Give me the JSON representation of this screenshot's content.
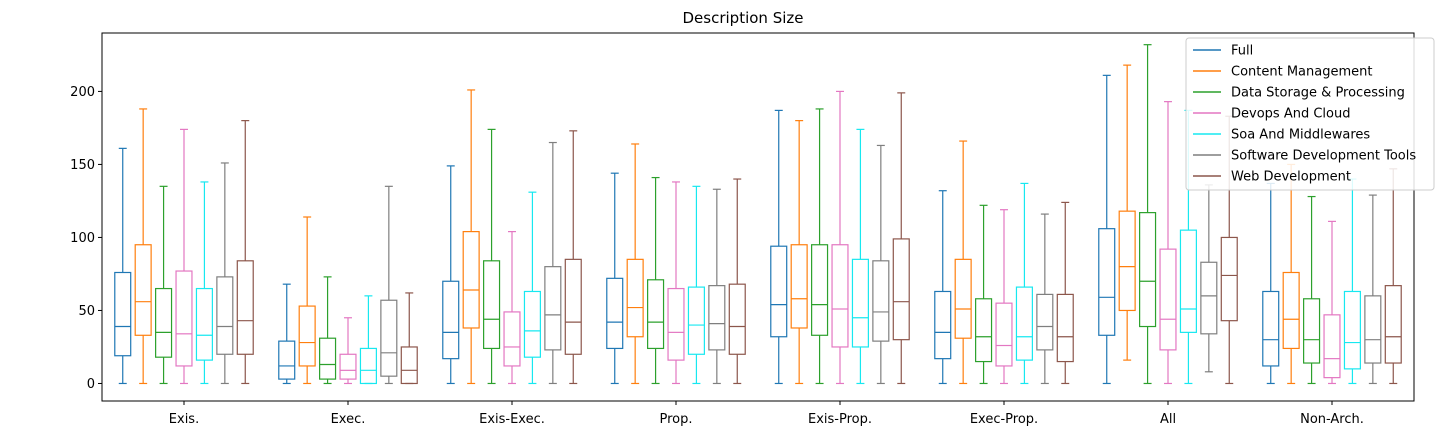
{
  "chart_data": {
    "type": "box",
    "title": "Description Size",
    "xlabel": "",
    "ylabel": "",
    "ylim": [
      -12,
      240
    ],
    "yticks": [
      0,
      50,
      100,
      150,
      200
    ],
    "legend_position": "top-right",
    "grid": false,
    "categories": [
      "Exis.",
      "Exec.",
      "Exis-Exec.",
      "Prop.",
      "Exis-Prop.",
      "Exec-Prop.",
      "All",
      "Non-Arch."
    ],
    "series": [
      {
        "name": "Full",
        "color": "#1f77b4",
        "boxes": [
          {
            "whislo": 0,
            "q1": 19,
            "med": 39,
            "q3": 76,
            "whishi": 161
          },
          {
            "whislo": 0,
            "q1": 3,
            "med": 12,
            "q3": 29,
            "whishi": 68
          },
          {
            "whislo": 0,
            "q1": 17,
            "med": 35,
            "q3": 70,
            "whishi": 149
          },
          {
            "whislo": 0,
            "q1": 24,
            "med": 42,
            "q3": 72,
            "whishi": 144
          },
          {
            "whislo": 0,
            "q1": 32,
            "med": 54,
            "q3": 94,
            "whishi": 187
          },
          {
            "whislo": 0,
            "q1": 17,
            "med": 35,
            "q3": 63,
            "whishi": 132
          },
          {
            "whislo": 0,
            "q1": 33,
            "med": 59,
            "q3": 106,
            "whishi": 211
          },
          {
            "whislo": 0,
            "q1": 12,
            "med": 30,
            "q3": 63,
            "whishi": 137
          }
        ]
      },
      {
        "name": "Content Management",
        "color": "#ff7f0e",
        "boxes": [
          {
            "whislo": 0,
            "q1": 33,
            "med": 56,
            "q3": 95,
            "whishi": 188
          },
          {
            "whislo": 0,
            "q1": 12,
            "med": 28,
            "q3": 53,
            "whishi": 114
          },
          {
            "whislo": 0,
            "q1": 38,
            "med": 64,
            "q3": 104,
            "whishi": 201
          },
          {
            "whislo": 0,
            "q1": 32,
            "med": 52,
            "q3": 85,
            "whishi": 164
          },
          {
            "whislo": 0,
            "q1": 38,
            "med": 58,
            "q3": 95,
            "whishi": 180
          },
          {
            "whislo": 0,
            "q1": 31,
            "med": 51,
            "q3": 85,
            "whishi": 166
          },
          {
            "whislo": 16,
            "q1": 50,
            "med": 80,
            "q3": 118,
            "whishi": 218
          },
          {
            "whislo": 0,
            "q1": 24,
            "med": 44,
            "q3": 76,
            "whishi": 150
          }
        ]
      },
      {
        "name": "Data Storage & Processing",
        "color": "#2ca02c",
        "boxes": [
          {
            "whislo": 0,
            "q1": 18,
            "med": 35,
            "q3": 65,
            "whishi": 135
          },
          {
            "whislo": 0,
            "q1": 3,
            "med": 13,
            "q3": 31,
            "whishi": 73
          },
          {
            "whislo": 0,
            "q1": 24,
            "med": 44,
            "q3": 84,
            "whishi": 174
          },
          {
            "whislo": 0,
            "q1": 24,
            "med": 42,
            "q3": 71,
            "whishi": 141
          },
          {
            "whislo": 0,
            "q1": 33,
            "med": 54,
            "q3": 95,
            "whishi": 188
          },
          {
            "whislo": 0,
            "q1": 15,
            "med": 32,
            "q3": 58,
            "whishi": 122
          },
          {
            "whislo": 0,
            "q1": 39,
            "med": 70,
            "q3": 117,
            "whishi": 232
          },
          {
            "whislo": 0,
            "q1": 14,
            "med": 30,
            "q3": 58,
            "whishi": 128
          }
        ]
      },
      {
        "name": "Devops And Cloud",
        "color": "#e377c2",
        "boxes": [
          {
            "whislo": 0,
            "q1": 12,
            "med": 34,
            "q3": 77,
            "whishi": 174
          },
          {
            "whislo": 0,
            "q1": 3,
            "med": 9,
            "q3": 20,
            "whishi": 45
          },
          {
            "whislo": 0,
            "q1": 12,
            "med": 25,
            "q3": 49,
            "whishi": 104
          },
          {
            "whislo": 0,
            "q1": 16,
            "med": 35,
            "q3": 65,
            "whishi": 138
          },
          {
            "whislo": 0,
            "q1": 25,
            "med": 51,
            "q3": 95,
            "whishi": 200
          },
          {
            "whislo": 0,
            "q1": 12,
            "med": 26,
            "q3": 55,
            "whishi": 119
          },
          {
            "whislo": 0,
            "q1": 23,
            "med": 44,
            "q3": 92,
            "whishi": 193
          },
          {
            "whislo": 0,
            "q1": 4,
            "med": 17,
            "q3": 47,
            "whishi": 111
          }
        ]
      },
      {
        "name": "Soa And Middlewares",
        "color": "#17e8f0",
        "boxes": [
          {
            "whislo": 0,
            "q1": 16,
            "med": 33,
            "q3": 65,
            "whishi": 138
          },
          {
            "whislo": 0,
            "q1": 0,
            "med": 9,
            "q3": 24,
            "whishi": 60
          },
          {
            "whislo": 0,
            "q1": 18,
            "med": 36,
            "q3": 63,
            "whishi": 131
          },
          {
            "whislo": 0,
            "q1": 20,
            "med": 40,
            "q3": 66,
            "whishi": 135
          },
          {
            "whislo": 0,
            "q1": 25,
            "med": 45,
            "q3": 85,
            "whishi": 174
          },
          {
            "whislo": 0,
            "q1": 16,
            "med": 32,
            "q3": 66,
            "whishi": 137
          },
          {
            "whislo": 0,
            "q1": 35,
            "med": 51,
            "q3": 105,
            "whishi": 187
          },
          {
            "whislo": 0,
            "q1": 10,
            "med": 28,
            "q3": 63,
            "whishi": 140
          }
        ]
      },
      {
        "name": "Software Development Tools",
        "color": "#7f7f7f",
        "boxes": [
          {
            "whislo": 0,
            "q1": 20,
            "med": 39,
            "q3": 73,
            "whishi": 151
          },
          {
            "whislo": 0,
            "q1": 5,
            "med": 21,
            "q3": 57,
            "whishi": 135
          },
          {
            "whislo": 0,
            "q1": 23,
            "med": 47,
            "q3": 80,
            "whishi": 165
          },
          {
            "whislo": 0,
            "q1": 23,
            "med": 41,
            "q3": 67,
            "whishi": 133
          },
          {
            "whislo": 0,
            "q1": 29,
            "med": 49,
            "q3": 84,
            "whishi": 163
          },
          {
            "whislo": 0,
            "q1": 23,
            "med": 39,
            "q3": 61,
            "whishi": 116
          },
          {
            "whislo": 8,
            "q1": 34,
            "med": 60,
            "q3": 83,
            "whishi": 136
          },
          {
            "whislo": 0,
            "q1": 14,
            "med": 30,
            "q3": 60,
            "whishi": 129
          }
        ]
      },
      {
        "name": "Web Development",
        "color": "#8c564b",
        "boxes": [
          {
            "whislo": 0,
            "q1": 20,
            "med": 43,
            "q3": 84,
            "whishi": 180
          },
          {
            "whislo": 0,
            "q1": 0,
            "med": 9,
            "q3": 25,
            "whishi": 62
          },
          {
            "whislo": 0,
            "q1": 20,
            "med": 42,
            "q3": 85,
            "whishi": 173
          },
          {
            "whislo": 0,
            "q1": 20,
            "med": 39,
            "q3": 68,
            "whishi": 140
          },
          {
            "whislo": 0,
            "q1": 30,
            "med": 56,
            "q3": 99,
            "whishi": 199
          },
          {
            "whislo": 0,
            "q1": 15,
            "med": 32,
            "q3": 61,
            "whishi": 124
          },
          {
            "whislo": 0,
            "q1": 43,
            "med": 74,
            "q3": 100,
            "whishi": 183
          },
          {
            "whislo": 0,
            "q1": 14,
            "med": 32,
            "q3": 67,
            "whishi": 147
          }
        ]
      }
    ]
  }
}
